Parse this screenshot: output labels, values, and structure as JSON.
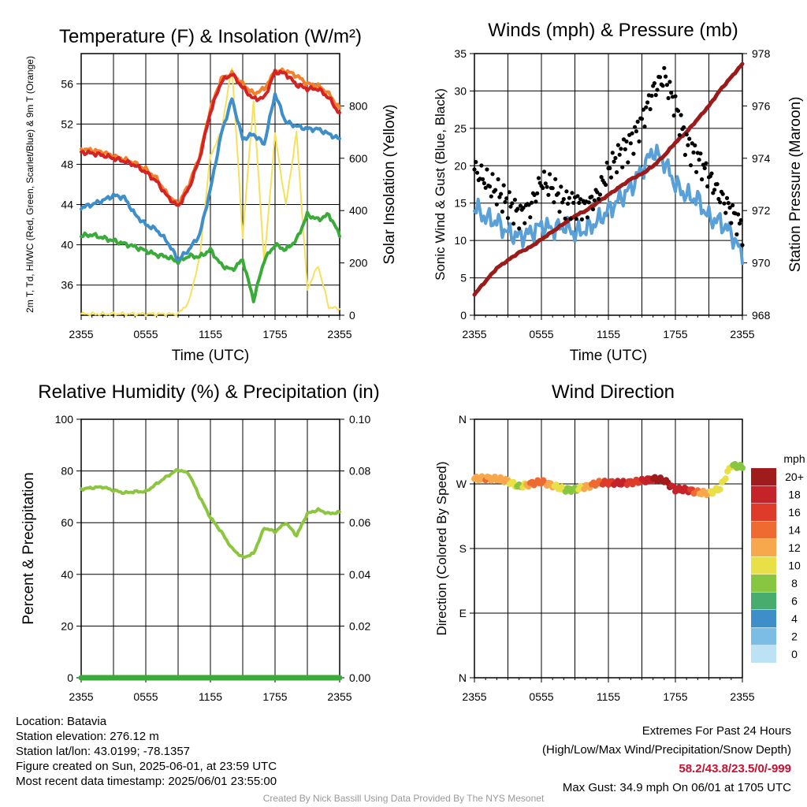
{
  "time_ticks": [
    "2355",
    "0555",
    "1155",
    "1755",
    "2355"
  ],
  "time_label": "Time (UTC)",
  "colors": {
    "air_temp": "#d52223",
    "temp_9m": "#f3802c",
    "dewpoint": "#3d8ec9",
    "wind_chill": "#3aab3a",
    "solar": "#f5e15c",
    "wind": "#5aa0d8",
    "gust": "#000000",
    "pressure": "#9b1b1b",
    "rh": "#8cc63e",
    "precip": "#3aab3a"
  },
  "footer": {
    "location": "Location: Batavia",
    "elevation": "Station elevation: 276.12 m",
    "latlon": "Station lat/lon: 43.0199; -78.1357",
    "created": "Figure created on Sun, 2025-06-01, at 23:59 UTC",
    "recent": "Most recent data timestamp: 2025/06/01 23:55:00",
    "extremes_title": "Extremes For Past 24 Hours",
    "extremes_fields": "(High/Low/Max Wind/Precipitation/Snow Depth)",
    "extremes_values": "58.2/43.8/23.5/0/-999",
    "max_gust": "Max Gust: 34.9 mph On 06/01 at 1705 UTC",
    "credit": "Created By Nick Bassill Using Data Provided By The NYS Mesonet"
  },
  "chart_data": [
    {
      "type": "line",
      "title": "Temperature (F) & Insolation (W/m²)",
      "xlabel": "Time (UTC)",
      "ylabel": "2m T, Td, HI/WC (Red, Green, Scarlet/Blue) & 9m T (Orange)",
      "y2label": "Solar Insolation (Yellow)",
      "x_ticks": [
        "2355",
        "0555",
        "1155",
        "1755",
        "2355"
      ],
      "ylim": [
        33,
        59
      ],
      "y_ticks": [
        36,
        40,
        44,
        48,
        52,
        56
      ],
      "y2lim": [
        0,
        1000
      ],
      "y2_ticks": [
        0,
        200,
        400,
        600,
        800
      ],
      "x": [
        0,
        1,
        2,
        3,
        4,
        5,
        6,
        7,
        8,
        9,
        10,
        11,
        12,
        13,
        14,
        15,
        16,
        17,
        18,
        19,
        20,
        21,
        22,
        23,
        24
      ],
      "series": [
        {
          "key": "temp_9m",
          "axis": "y",
          "values": [
            49.5,
            49.4,
            49.2,
            48.8,
            48.5,
            48.1,
            47.5,
            46.6,
            45.0,
            44.0,
            46.0,
            48.8,
            53.5,
            56.5,
            57.0,
            56.0,
            55.0,
            55.5,
            57.2,
            57.3,
            56.8,
            56.0,
            55.8,
            55.0,
            53.5
          ]
        },
        {
          "key": "air_temp",
          "axis": "y",
          "values": [
            49.2,
            49.1,
            48.9,
            48.6,
            48.3,
            47.9,
            47.2,
            46.3,
            44.8,
            43.8,
            45.6,
            48.6,
            53.2,
            56.2,
            57.0,
            55.6,
            54.5,
            54.6,
            57.2,
            57.0,
            55.9,
            55.5,
            55.5,
            54.6,
            53.0
          ]
        },
        {
          "key": "dewpoint",
          "axis": "y",
          "values": [
            43.7,
            44.0,
            44.4,
            44.9,
            44.7,
            43.0,
            42.0,
            41.5,
            40.3,
            38.5,
            39.5,
            41.0,
            45.5,
            51.0,
            54.5,
            50.5,
            51.0,
            50.0,
            55.0,
            52.2,
            51.8,
            51.5,
            51.5,
            51.0,
            50.5
          ]
        },
        {
          "key": "wind_chill",
          "axis": "y",
          "values": [
            40.9,
            41.0,
            40.7,
            40.4,
            40.1,
            39.8,
            39.4,
            39.0,
            38.8,
            38.3,
            38.9,
            38.8,
            39.5,
            38.0,
            37.5,
            38.5,
            34.5,
            38.5,
            40.0,
            39.5,
            40.5,
            43.0,
            42.5,
            43.0,
            41.0
          ]
        },
        {
          "key": "solar",
          "axis": "y2",
          "values": [
            5,
            5,
            5,
            5,
            5,
            5,
            5,
            5,
            5,
            5,
            50,
            220,
            610,
            700,
            950,
            300,
            820,
            200,
            690,
            420,
            700,
            100,
            190,
            30,
            25
          ]
        }
      ]
    },
    {
      "type": "line",
      "title": "Winds (mph) & Pressure (mb)",
      "xlabel": "Time (UTC)",
      "ylabel": "Sonic Wind & Gust (Blue, Black)",
      "y2label": "Station Pressure (Maroon)",
      "x_ticks": [
        "2355",
        "0555",
        "1155",
        "1755",
        "2355"
      ],
      "ylim": [
        0,
        35
      ],
      "y_ticks": [
        0,
        5,
        10,
        15,
        20,
        25,
        30,
        35
      ],
      "y2lim": [
        968,
        978
      ],
      "y2_ticks": [
        968,
        970,
        972,
        974,
        976,
        978
      ],
      "x": [
        0,
        1,
        2,
        3,
        4,
        5,
        6,
        7,
        8,
        9,
        10,
        11,
        12,
        13,
        14,
        15,
        16,
        17,
        18,
        19,
        20,
        21,
        22,
        23,
        24
      ],
      "series": [
        {
          "key": "wind",
          "axis": "y",
          "values": [
            14.5,
            13.0,
            12.5,
            11.0,
            10.5,
            11.0,
            12.0,
            11.5,
            12.0,
            11.0,
            11.5,
            12.5,
            14.0,
            15.5,
            17.0,
            19.5,
            22.0,
            20.5,
            17.5,
            16.0,
            15.5,
            13.0,
            12.5,
            11.0,
            8.0
          ]
        },
        {
          "key": "gust",
          "axis": "y",
          "style": "dots",
          "values": [
            19.5,
            18.0,
            16.5,
            15.0,
            13.5,
            14.5,
            18.0,
            17.0,
            15.0,
            15.0,
            14.5,
            16.0,
            19.5,
            21.5,
            23.0,
            26.0,
            30.0,
            32.0,
            28.0,
            23.0,
            21.0,
            18.5,
            16.0,
            14.0,
            11.5
          ]
        },
        {
          "key": "pressure",
          "axis": "y2",
          "values": [
            968.8,
            969.3,
            969.8,
            970.1,
            970.4,
            970.6,
            970.9,
            971.2,
            971.5,
            971.8,
            972.0,
            972.3,
            972.6,
            972.9,
            973.2,
            973.4,
            973.7,
            974.1,
            974.6,
            975.0,
            975.5,
            976.0,
            976.6,
            977.1,
            977.6
          ]
        }
      ]
    },
    {
      "type": "line",
      "title": "Relative Humidity (%) & Precipitation (in)",
      "xlabel": "",
      "ylabel": "Percent & Precipitation",
      "x_ticks": [
        "2355",
        "0555",
        "1155",
        "1755",
        "2355"
      ],
      "ylim": [
        0,
        100
      ],
      "y_ticks": [
        0,
        20,
        40,
        60,
        80,
        100
      ],
      "y2lim": [
        0,
        0.1
      ],
      "y2_ticks": [
        "0.00",
        "0.02",
        "0.04",
        "0.06",
        "0.08",
        "0.10"
      ],
      "x": [
        0,
        1,
        2,
        3,
        4,
        5,
        6,
        7,
        8,
        9,
        10,
        11,
        12,
        13,
        14,
        15,
        16,
        17,
        18,
        19,
        20,
        21,
        22,
        23,
        24
      ],
      "series": [
        {
          "key": "rh",
          "axis": "y",
          "values": [
            73.0,
            73.5,
            73.8,
            72.5,
            71.5,
            72.0,
            72.0,
            75.0,
            78.0,
            80.5,
            79.0,
            70.0,
            62.0,
            56.5,
            50.0,
            46.5,
            48.0,
            58.0,
            56.5,
            60.0,
            55.0,
            63.5,
            65.0,
            63.5,
            64.0
          ]
        },
        {
          "key": "precip",
          "axis": "y2",
          "values": [
            0,
            0,
            0,
            0,
            0,
            0,
            0,
            0,
            0,
            0,
            0,
            0,
            0,
            0,
            0,
            0,
            0,
            0,
            0,
            0,
            0,
            0,
            0,
            0,
            0
          ]
        }
      ]
    },
    {
      "type": "scatter",
      "title": "Wind Direction",
      "xlabel": "",
      "ylabel": "Direction (Colored By Speed)",
      "x_ticks": [
        "2355",
        "0555",
        "1155",
        "1755",
        "2355"
      ],
      "y_ticks": [
        "N",
        "E",
        "S",
        "W",
        "N"
      ],
      "ylim": [
        0,
        360
      ],
      "x": [
        0,
        1,
        2,
        3,
        4,
        5,
        6,
        7,
        8,
        9,
        10,
        11,
        12,
        13,
        14,
        15,
        16,
        17,
        18,
        19,
        20,
        21,
        22,
        23,
        24
      ],
      "direction": [
        277,
        278,
        277,
        274,
        266,
        270,
        273,
        268,
        262,
        262,
        266,
        271,
        272,
        271,
        272,
        274,
        277,
        275,
        262,
        262,
        258,
        257,
        264,
        296,
        293
      ],
      "speed": [
        12,
        13,
        12,
        11,
        8,
        13,
        14,
        11,
        9,
        8,
        12,
        14,
        16,
        18,
        16,
        17,
        19,
        20,
        18,
        18,
        13,
        11,
        10,
        9,
        8
      ],
      "legend": {
        "title": "mph",
        "labels": [
          "20+",
          "18",
          "16",
          "14",
          "12",
          "10",
          "8",
          "6",
          "4",
          "2",
          "0"
        ],
        "colors": [
          "#a01b1b",
          "#c5232a",
          "#df3b2a",
          "#ef6a30",
          "#f8a84c",
          "#e9e048",
          "#88c540",
          "#48ac6e",
          "#3d8ec9",
          "#7cbde6",
          "#bde2f5"
        ]
      }
    }
  ]
}
